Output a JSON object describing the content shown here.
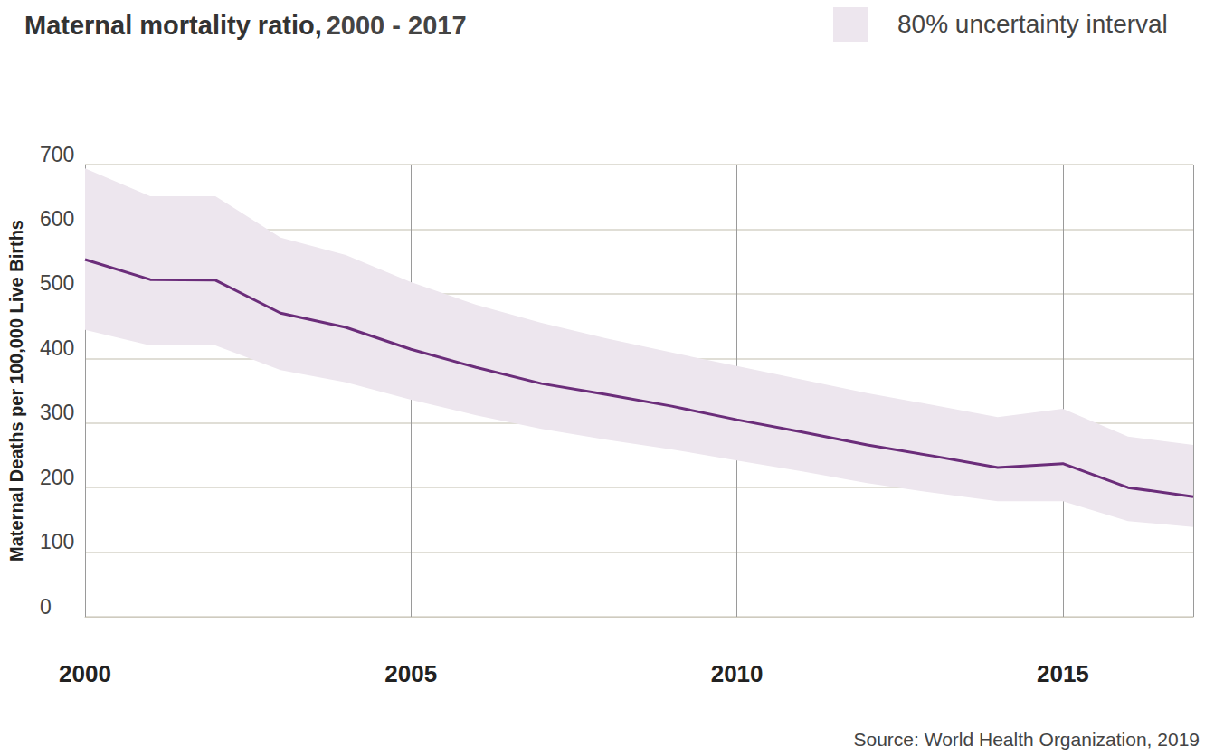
{
  "chart_data": {
    "type": "line",
    "title": "Maternal mortality ratio,",
    "subtitle": "2000 - 2017",
    "ylabel": "Maternal Deaths per 100,000 Live Births",
    "source": "Source: World Health Organization, 2019",
    "x": [
      2000,
      2001,
      2002,
      2003,
      2004,
      2005,
      2006,
      2007,
      2008,
      2009,
      2010,
      2011,
      2012,
      2013,
      2014,
      2015,
      2016,
      2017
    ],
    "values": [
      553,
      522,
      521,
      470,
      448,
      414,
      386,
      361,
      344,
      326,
      305,
      286,
      266,
      249,
      231,
      237,
      200,
      186
    ],
    "color": "#6b2d7a",
    "interval": {
      "name": "80% uncertainty interval",
      "lower": [
        444,
        420,
        420,
        382,
        363,
        336,
        312,
        291,
        274,
        259,
        242,
        225,
        207,
        192,
        179,
        179,
        148,
        139
      ],
      "upper": [
        694,
        651,
        651,
        587,
        560,
        518,
        483,
        455,
        431,
        409,
        388,
        367,
        346,
        328,
        309,
        322,
        279,
        266
      ],
      "color": "#ede6ee"
    },
    "xlim": [
      2000,
      2017
    ],
    "xticks": [
      2000,
      2005,
      2010,
      2015
    ],
    "ylim": [
      0,
      700
    ],
    "yticks": [
      0,
      100,
      200,
      300,
      400,
      500,
      600,
      700
    ],
    "grid": true
  }
}
